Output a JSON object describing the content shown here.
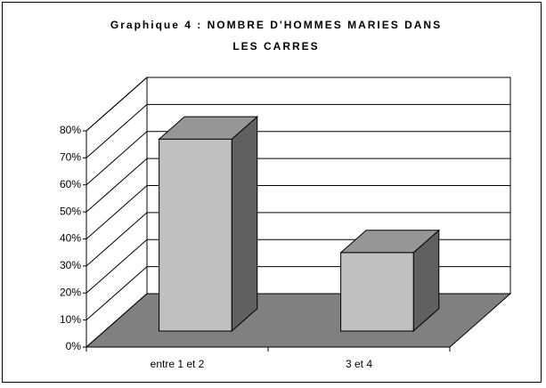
{
  "chart_data": {
    "type": "bar3d",
    "title": "Graphique 4 : NOMBRE D'HOMMES MARIES DANS LES CARRES",
    "categories": [
      "entre 1 et 2",
      "3 et 4"
    ],
    "values": [
      71,
      29
    ],
    "color": "#c0c0c0",
    "top_color": "#969696",
    "side_color": "#606060",
    "floor_color": "#808080",
    "ylim": [
      0,
      80
    ],
    "yticks": [
      {
        "value": 0,
        "label": "0%"
      },
      {
        "value": 10,
        "label": "10%"
      },
      {
        "value": 20,
        "label": "20%"
      },
      {
        "value": 30,
        "label": "30%"
      },
      {
        "value": 40,
        "label": "40%"
      },
      {
        "value": 50,
        "label": "50%"
      },
      {
        "value": 60,
        "label": "60%"
      },
      {
        "value": 70,
        "label": "70%"
      },
      {
        "value": 80,
        "label": "80%"
      }
    ],
    "grid": true
  }
}
